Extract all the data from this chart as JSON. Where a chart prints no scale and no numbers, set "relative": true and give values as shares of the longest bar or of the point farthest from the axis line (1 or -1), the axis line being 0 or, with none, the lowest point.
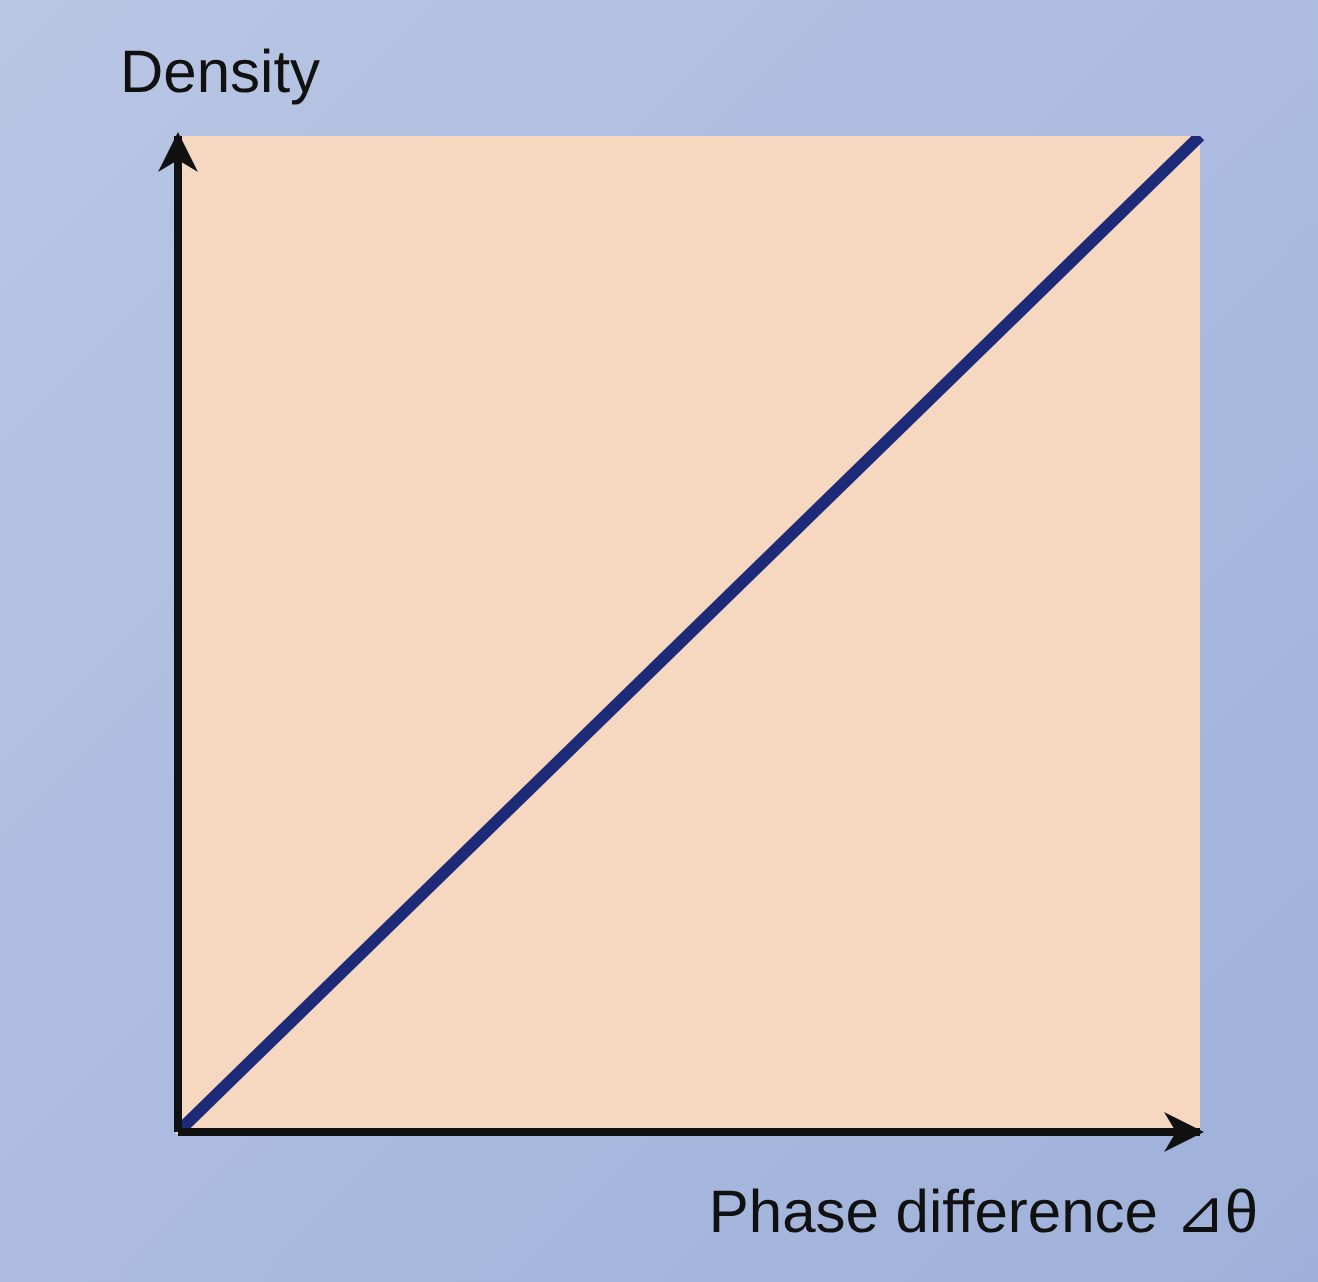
{
  "chart_data": {
    "type": "line",
    "relative": true,
    "xlabel": "Phase difference ⊿θ",
    "ylabel": "Density",
    "categories": [
      null,
      null
    ],
    "series": [
      {
        "color": "#1c2a78",
        "values": [
          0,
          1
        ]
      }
    ],
    "marker": "none",
    "line_style": "solid"
  }
}
